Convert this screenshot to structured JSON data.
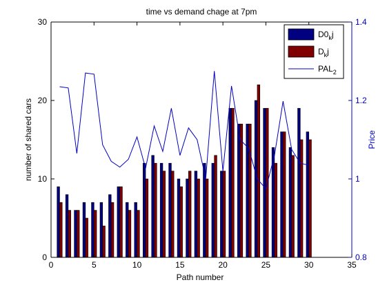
{
  "chart_data": {
    "type": "bar",
    "title": "time vs demand chage at 7pm",
    "xlabel": "Path number",
    "ylabel": "number of shared cars",
    "y2label": "Price",
    "xlim": [
      0,
      35
    ],
    "ylim": [
      0,
      30
    ],
    "y2lim": [
      0.8,
      1.4
    ],
    "x_ticks": [
      "0",
      "5",
      "10",
      "15",
      "20",
      "25",
      "30",
      "35"
    ],
    "y_ticks": [
      "0",
      "10",
      "20",
      "30"
    ],
    "y2_ticks": [
      "0.8",
      "1",
      "1.2",
      "1.4"
    ],
    "x": [
      1,
      2,
      3,
      4,
      5,
      6,
      7,
      8,
      9,
      10,
      11,
      12,
      13,
      14,
      15,
      16,
      17,
      18,
      19,
      20,
      21,
      22,
      23,
      24,
      25,
      26,
      27,
      28,
      29,
      30
    ],
    "series": [
      {
        "name": "D0",
        "legend_main": "D0",
        "legend_sub": "k",
        "legend_tail": "j",
        "color": "#000080",
        "axis": "left",
        "kind": "bar",
        "values": [
          9,
          8,
          6,
          7,
          7,
          7,
          8,
          9,
          7,
          7,
          12,
          13,
          12,
          12,
          10,
          10,
          11,
          12,
          12,
          11,
          19,
          17,
          17,
          20,
          19,
          14,
          16,
          14,
          19,
          16
        ]
      },
      {
        "name": "D",
        "legend_main": "D",
        "legend_sub": "k",
        "legend_tail": "j",
        "color": "#800000",
        "axis": "left",
        "kind": "bar",
        "values": [
          7,
          6,
          6,
          5,
          6,
          4,
          7,
          9,
          6,
          6,
          10,
          12,
          11,
          11,
          9,
          11,
          10,
          10,
          13,
          11,
          19,
          17,
          17,
          22,
          19,
          12,
          16,
          13,
          15,
          15
        ]
      },
      {
        "name": "PAL2",
        "legend_main": "PAL",
        "legend_sub": "2",
        "legend_tail": "",
        "color": "#0000c0",
        "axis": "right",
        "kind": "line",
        "values": [
          1.235,
          1.232,
          1.065,
          1.27,
          1.267,
          1.087,
          1.045,
          1.03,
          1.05,
          1.107,
          1.027,
          1.135,
          1.07,
          1.18,
          1.06,
          1.13,
          1.1,
          1.0,
          1.275,
          1.02,
          1.237,
          1.1,
          1.078,
          1.0,
          0.975,
          1.06,
          1.198,
          1.075,
          1.04,
          1.035
        ]
      }
    ],
    "legend_position": "top-right",
    "grid": false
  }
}
